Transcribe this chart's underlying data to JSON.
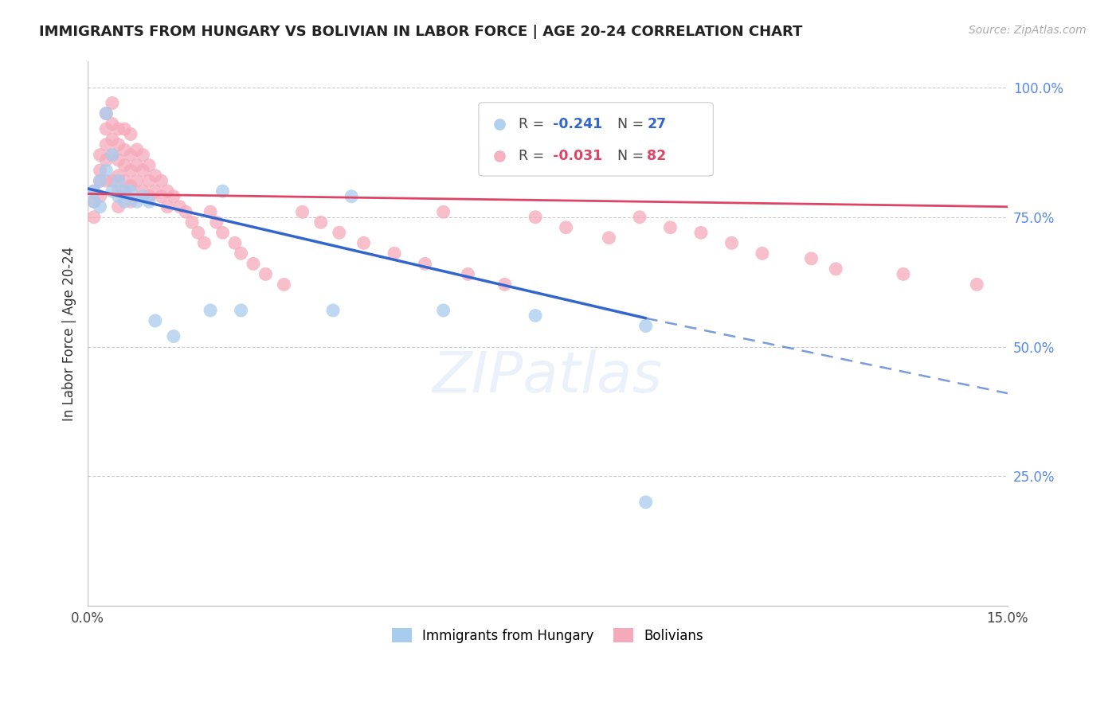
{
  "title": "IMMIGRANTS FROM HUNGARY VS BOLIVIAN IN LABOR FORCE | AGE 20-24 CORRELATION CHART",
  "source": "Source: ZipAtlas.com",
  "ylabel": "In Labor Force | Age 20-24",
  "xlim": [
    0.0,
    0.15
  ],
  "ylim": [
    0.0,
    1.05
  ],
  "xtick_positions": [
    0.0,
    0.03,
    0.06,
    0.09,
    0.12,
    0.15
  ],
  "xticklabels": [
    "0.0%",
    "",
    "",
    "",
    "",
    "15.0%"
  ],
  "ytick_positions": [
    0.25,
    0.5,
    0.75,
    1.0
  ],
  "ytick_labels_right": [
    "25.0%",
    "50.0%",
    "75.0%",
    "100.0%"
  ],
  "legend_r_blue": "-0.241",
  "legend_n_blue": "27",
  "legend_r_pink": "-0.031",
  "legend_n_pink": "82",
  "blue_scatter_color": "#a8ccee",
  "pink_scatter_color": "#f5aabb",
  "trendline_blue_color": "#3366cc",
  "trendline_pink_color": "#dd4466",
  "watermark": "ZIPatlas",
  "hungary_x": [
    0.001,
    0.001,
    0.002,
    0.002,
    0.003,
    0.003,
    0.004,
    0.004,
    0.005,
    0.005,
    0.006,
    0.006,
    0.007,
    0.008,
    0.009,
    0.01,
    0.011,
    0.014,
    0.02,
    0.022,
    0.025,
    0.04,
    0.043,
    0.058,
    0.073,
    0.091,
    0.091
  ],
  "hungary_y": [
    0.8,
    0.78,
    0.82,
    0.77,
    0.95,
    0.84,
    0.87,
    0.8,
    0.82,
    0.79,
    0.8,
    0.78,
    0.8,
    0.78,
    0.79,
    0.78,
    0.55,
    0.52,
    0.57,
    0.8,
    0.57,
    0.57,
    0.79,
    0.57,
    0.56,
    0.54,
    0.2
  ],
  "bolivia_x": [
    0.001,
    0.001,
    0.001,
    0.002,
    0.002,
    0.002,
    0.002,
    0.003,
    0.003,
    0.003,
    0.003,
    0.003,
    0.004,
    0.004,
    0.004,
    0.004,
    0.004,
    0.005,
    0.005,
    0.005,
    0.005,
    0.005,
    0.005,
    0.006,
    0.006,
    0.006,
    0.006,
    0.007,
    0.007,
    0.007,
    0.007,
    0.007,
    0.008,
    0.008,
    0.008,
    0.009,
    0.009,
    0.009,
    0.01,
    0.01,
    0.01,
    0.011,
    0.011,
    0.012,
    0.012,
    0.013,
    0.013,
    0.014,
    0.015,
    0.016,
    0.017,
    0.018,
    0.019,
    0.02,
    0.021,
    0.022,
    0.024,
    0.025,
    0.027,
    0.029,
    0.032,
    0.035,
    0.038,
    0.041,
    0.045,
    0.05,
    0.055,
    0.058,
    0.062,
    0.068,
    0.073,
    0.078,
    0.085,
    0.09,
    0.095,
    0.1,
    0.105,
    0.11,
    0.118,
    0.122,
    0.133,
    0.145
  ],
  "bolivia_y": [
    0.8,
    0.78,
    0.75,
    0.87,
    0.84,
    0.82,
    0.79,
    0.95,
    0.92,
    0.89,
    0.86,
    0.82,
    0.97,
    0.93,
    0.9,
    0.87,
    0.82,
    0.92,
    0.89,
    0.86,
    0.83,
    0.8,
    0.77,
    0.92,
    0.88,
    0.85,
    0.82,
    0.91,
    0.87,
    0.84,
    0.81,
    0.78,
    0.88,
    0.85,
    0.82,
    0.87,
    0.84,
    0.8,
    0.85,
    0.82,
    0.79,
    0.83,
    0.8,
    0.82,
    0.79,
    0.8,
    0.77,
    0.79,
    0.77,
    0.76,
    0.74,
    0.72,
    0.7,
    0.76,
    0.74,
    0.72,
    0.7,
    0.68,
    0.66,
    0.64,
    0.62,
    0.76,
    0.74,
    0.72,
    0.7,
    0.68,
    0.66,
    0.76,
    0.64,
    0.62,
    0.75,
    0.73,
    0.71,
    0.75,
    0.73,
    0.72,
    0.7,
    0.68,
    0.67,
    0.65,
    0.64,
    0.62
  ],
  "trendline_blue_x0": 0.0,
  "trendline_blue_y0": 0.805,
  "trendline_blue_x1": 0.091,
  "trendline_blue_y1": 0.555,
  "trendline_blue_dash_x1": 0.15,
  "trendline_blue_dash_y1": 0.41,
  "trendline_pink_x0": 0.0,
  "trendline_pink_y0": 0.795,
  "trendline_pink_x1": 0.15,
  "trendline_pink_y1": 0.77
}
